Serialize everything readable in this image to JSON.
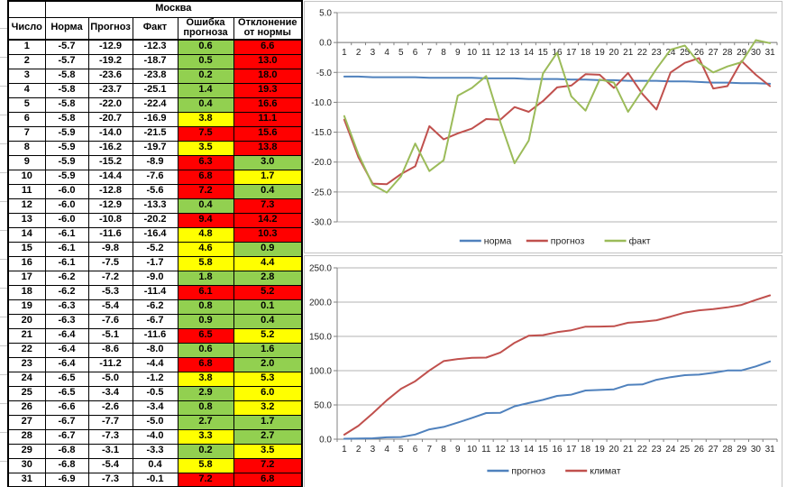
{
  "colors": {
    "green": "#92D050",
    "yellow": "#FFFF00",
    "red": "#FF0000",
    "line_blue": "#4F81BD",
    "line_red": "#C0504D",
    "line_green": "#9BBB59",
    "grid": "#B3B3B3",
    "axis": "#808080"
  },
  "table": {
    "city": "Москва",
    "columns": [
      "Число",
      "Норма",
      "Прогноз",
      "Факт",
      "Ошибка прогноза",
      "Отклонение от нормы"
    ],
    "rows": [
      {
        "day": "1",
        "norm": "-5.7",
        "forecast": "-12.9",
        "fact": "-12.3",
        "error": "0.6",
        "error_level": "green",
        "deviation": "6.6",
        "deviation_level": "red"
      },
      {
        "day": "2",
        "norm": "-5.7",
        "forecast": "-19.2",
        "fact": "-18.7",
        "error": "0.5",
        "error_level": "green",
        "deviation": "13.0",
        "deviation_level": "red"
      },
      {
        "day": "3",
        "norm": "-5.8",
        "forecast": "-23.6",
        "fact": "-23.8",
        "error": "0.2",
        "error_level": "green",
        "deviation": "18.0",
        "deviation_level": "red"
      },
      {
        "day": "4",
        "norm": "-5.8",
        "forecast": "-23.7",
        "fact": "-25.1",
        "error": "1.4",
        "error_level": "green",
        "deviation": "19.3",
        "deviation_level": "red"
      },
      {
        "day": "5",
        "norm": "-5.8",
        "forecast": "-22.0",
        "fact": "-22.4",
        "error": "0.4",
        "error_level": "green",
        "deviation": "16.6",
        "deviation_level": "red"
      },
      {
        "day": "6",
        "norm": "-5.8",
        "forecast": "-20.7",
        "fact": "-16.9",
        "error": "3.8",
        "error_level": "yellow",
        "deviation": "11.1",
        "deviation_level": "red"
      },
      {
        "day": "7",
        "norm": "-5.9",
        "forecast": "-14.0",
        "fact": "-21.5",
        "error": "7.5",
        "error_level": "red",
        "deviation": "15.6",
        "deviation_level": "red"
      },
      {
        "day": "8",
        "norm": "-5.9",
        "forecast": "-16.2",
        "fact": "-19.7",
        "error": "3.5",
        "error_level": "yellow",
        "deviation": "13.8",
        "deviation_level": "red"
      },
      {
        "day": "9",
        "norm": "-5.9",
        "forecast": "-15.2",
        "fact": "-8.9",
        "error": "6.3",
        "error_level": "red",
        "deviation": "3.0",
        "deviation_level": "green"
      },
      {
        "day": "10",
        "norm": "-5.9",
        "forecast": "-14.4",
        "fact": "-7.6",
        "error": "6.8",
        "error_level": "red",
        "deviation": "1.7",
        "deviation_level": "yellow"
      },
      {
        "day": "11",
        "norm": "-6.0",
        "forecast": "-12.8",
        "fact": "-5.6",
        "error": "7.2",
        "error_level": "red",
        "deviation": "0.4",
        "deviation_level": "green"
      },
      {
        "day": "12",
        "norm": "-6.0",
        "forecast": "-12.9",
        "fact": "-13.3",
        "error": "0.4",
        "error_level": "green",
        "deviation": "7.3",
        "deviation_level": "red"
      },
      {
        "day": "13",
        "norm": "-6.0",
        "forecast": "-10.8",
        "fact": "-20.2",
        "error": "9.4",
        "error_level": "red",
        "deviation": "14.2",
        "deviation_level": "red"
      },
      {
        "day": "14",
        "norm": "-6.1",
        "forecast": "-11.6",
        "fact": "-16.4",
        "error": "4.8",
        "error_level": "yellow",
        "deviation": "10.3",
        "deviation_level": "red"
      },
      {
        "day": "15",
        "norm": "-6.1",
        "forecast": "-9.8",
        "fact": "-5.2",
        "error": "4.6",
        "error_level": "yellow",
        "deviation": "0.9",
        "deviation_level": "green"
      },
      {
        "day": "16",
        "norm": "-6.1",
        "forecast": "-7.5",
        "fact": "-1.7",
        "error": "5.8",
        "error_level": "yellow",
        "deviation": "4.4",
        "deviation_level": "yellow"
      },
      {
        "day": "17",
        "norm": "-6.2",
        "forecast": "-7.2",
        "fact": "-9.0",
        "error": "1.8",
        "error_level": "green",
        "deviation": "2.8",
        "deviation_level": "green"
      },
      {
        "day": "18",
        "norm": "-6.2",
        "forecast": "-5.3",
        "fact": "-11.4",
        "error": "6.1",
        "error_level": "red",
        "deviation": "5.2",
        "deviation_level": "red"
      },
      {
        "day": "19",
        "norm": "-6.3",
        "forecast": "-5.4",
        "fact": "-6.2",
        "error": "0.8",
        "error_level": "green",
        "deviation": "0.1",
        "deviation_level": "green"
      },
      {
        "day": "20",
        "norm": "-6.3",
        "forecast": "-7.6",
        "fact": "-6.7",
        "error": "0.9",
        "error_level": "green",
        "deviation": "0.4",
        "deviation_level": "green"
      },
      {
        "day": "21",
        "norm": "-6.4",
        "forecast": "-5.1",
        "fact": "-11.6",
        "error": "6.5",
        "error_level": "red",
        "deviation": "5.2",
        "deviation_level": "yellow"
      },
      {
        "day": "22",
        "norm": "-6.4",
        "forecast": "-8.6",
        "fact": "-8.0",
        "error": "0.6",
        "error_level": "green",
        "deviation": "1.6",
        "deviation_level": "green"
      },
      {
        "day": "23",
        "norm": "-6.4",
        "forecast": "-11.2",
        "fact": "-4.4",
        "error": "6.8",
        "error_level": "red",
        "deviation": "2.0",
        "deviation_level": "green"
      },
      {
        "day": "24",
        "norm": "-6.5",
        "forecast": "-5.0",
        "fact": "-1.2",
        "error": "3.8",
        "error_level": "yellow",
        "deviation": "5.3",
        "deviation_level": "yellow"
      },
      {
        "day": "25",
        "norm": "-6.5",
        "forecast": "-3.4",
        "fact": "-0.5",
        "error": "2.9",
        "error_level": "green",
        "deviation": "6.0",
        "deviation_level": "yellow"
      },
      {
        "day": "26",
        "norm": "-6.6",
        "forecast": "-2.6",
        "fact": "-3.4",
        "error": "0.8",
        "error_level": "green",
        "deviation": "3.2",
        "deviation_level": "yellow"
      },
      {
        "day": "27",
        "norm": "-6.7",
        "forecast": "-7.7",
        "fact": "-5.0",
        "error": "2.7",
        "error_level": "green",
        "deviation": "1.7",
        "deviation_level": "green"
      },
      {
        "day": "28",
        "norm": "-6.7",
        "forecast": "-7.3",
        "fact": "-4.0",
        "error": "3.3",
        "error_level": "yellow",
        "deviation": "2.7",
        "deviation_level": "green"
      },
      {
        "day": "29",
        "norm": "-6.8",
        "forecast": "-3.1",
        "fact": "-3.3",
        "error": "0.2",
        "error_level": "green",
        "deviation": "3.5",
        "deviation_level": "yellow"
      },
      {
        "day": "30",
        "norm": "-6.8",
        "forecast": "-5.4",
        "fact": "0.4",
        "error": "5.8",
        "error_level": "yellow",
        "deviation": "7.2",
        "deviation_level": "red"
      },
      {
        "day": "31",
        "norm": "-6.9",
        "forecast": "-7.3",
        "fact": "-0.1",
        "error": "7.2",
        "error_level": "red",
        "deviation": "6.8",
        "deviation_level": "red"
      }
    ]
  },
  "chart_data": [
    {
      "type": "line",
      "title": "",
      "x": [
        1,
        2,
        3,
        4,
        5,
        6,
        7,
        8,
        9,
        10,
        11,
        12,
        13,
        14,
        15,
        16,
        17,
        18,
        19,
        20,
        21,
        22,
        23,
        24,
        25,
        26,
        27,
        28,
        29,
        30,
        31
      ],
      "series": [
        {
          "name": "норма",
          "color": "#4F81BD",
          "values": [
            -5.7,
            -5.7,
            -5.8,
            -5.8,
            -5.8,
            -5.8,
            -5.9,
            -5.9,
            -5.9,
            -5.9,
            -6.0,
            -6.0,
            -6.0,
            -6.1,
            -6.1,
            -6.1,
            -6.2,
            -6.2,
            -6.3,
            -6.3,
            -6.4,
            -6.4,
            -6.4,
            -6.5,
            -6.5,
            -6.6,
            -6.7,
            -6.7,
            -6.8,
            -6.8,
            -6.9
          ]
        },
        {
          "name": "прогноз",
          "color": "#C0504D",
          "values": [
            -12.9,
            -19.2,
            -23.6,
            -23.7,
            -22.0,
            -20.7,
            -14.0,
            -16.2,
            -15.2,
            -14.4,
            -12.8,
            -12.9,
            -10.8,
            -11.6,
            -9.8,
            -7.5,
            -7.2,
            -5.3,
            -5.4,
            -7.6,
            -5.1,
            -8.6,
            -11.2,
            -5.0,
            -3.4,
            -2.6,
            -7.7,
            -7.3,
            -3.1,
            -5.4,
            -7.3
          ]
        },
        {
          "name": "факт",
          "color": "#9BBB59",
          "values": [
            -12.3,
            -18.7,
            -23.8,
            -25.1,
            -22.4,
            -16.9,
            -21.5,
            -19.7,
            -8.9,
            -7.6,
            -5.6,
            -13.3,
            -20.2,
            -16.4,
            -5.2,
            -1.7,
            -9.0,
            -11.4,
            -6.2,
            -6.7,
            -11.6,
            -8.0,
            -4.4,
            -1.2,
            -0.5,
            -3.4,
            -5.0,
            -4.0,
            -3.3,
            0.4,
            -0.1
          ]
        }
      ],
      "ylim": [
        -30,
        5
      ],
      "ytick": 5,
      "grid": true,
      "legend_position": "bottom"
    },
    {
      "type": "line",
      "title": "",
      "x": [
        1,
        2,
        3,
        4,
        5,
        6,
        7,
        8,
        9,
        10,
        11,
        12,
        13,
        14,
        15,
        16,
        17,
        18,
        19,
        20,
        21,
        22,
        23,
        24,
        25,
        26,
        27,
        28,
        29,
        30,
        31
      ],
      "series": [
        {
          "name": "прогноз",
          "color": "#4F81BD",
          "values": [
            0.6,
            1.1,
            1.3,
            2.7,
            3.1,
            6.9,
            14.4,
            17.9,
            24.2,
            31.0,
            38.2,
            38.6,
            48.0,
            52.8,
            57.4,
            63.2,
            65.0,
            71.1,
            71.9,
            72.8,
            79.3,
            79.9,
            86.7,
            90.5,
            93.4,
            94.2,
            96.9,
            100.2,
            100.4,
            106.2,
            113.4
          ]
        },
        {
          "name": "климат",
          "color": "#C0504D",
          "values": [
            6.6,
            19.6,
            37.6,
            56.9,
            73.5,
            84.6,
            100.2,
            114.0,
            117.0,
            118.7,
            119.1,
            126.4,
            140.6,
            150.9,
            151.8,
            156.2,
            159.0,
            164.2,
            164.3,
            164.7,
            169.9,
            171.5,
            173.5,
            178.8,
            184.8,
            188.0,
            189.7,
            192.4,
            195.9,
            203.1,
            209.9
          ]
        }
      ],
      "ylim": [
        0,
        250
      ],
      "ytick": 50,
      "grid": true,
      "legend_position": "bottom"
    }
  ]
}
